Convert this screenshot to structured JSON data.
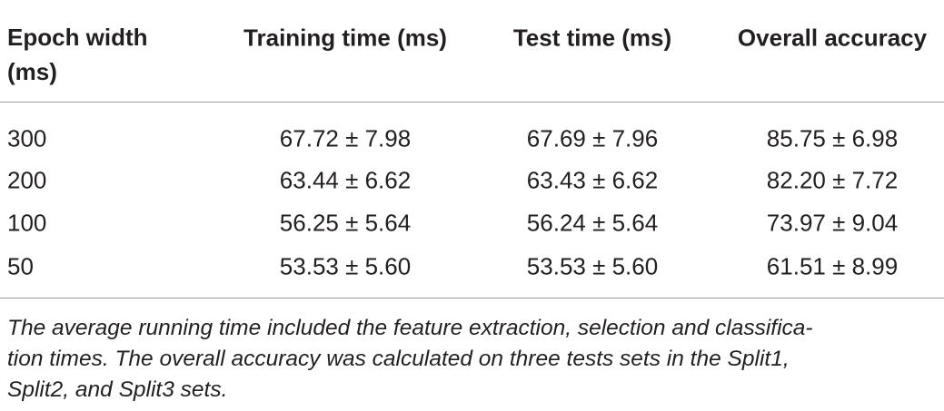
{
  "table": {
    "columns": [
      "Epoch width (ms)",
      "Training time (ms)",
      "Test time (ms)",
      "Overall accuracy"
    ],
    "rows": [
      [
        "300",
        "67.72 ± 7.98",
        "67.69 ± 7.96",
        "85.75 ± 6.98"
      ],
      [
        "200",
        "63.44 ± 6.62",
        "63.43 ± 6.62",
        "82.20 ± 7.72"
      ],
      [
        "100",
        "56.25 ± 5.64",
        "56.24 ± 5.64",
        "73.97 ± 9.04"
      ],
      [
        "50",
        "53.53 ± 5.60",
        "53.53 ± 5.60",
        "61.51 ± 8.99"
      ]
    ]
  },
  "footnote": [
    "The average running time included the feature extraction, selection and classifica-",
    "tion times. The overall accuracy was calculated on three tests sets in the Split1,",
    "Split2, and Split3 sets."
  ]
}
